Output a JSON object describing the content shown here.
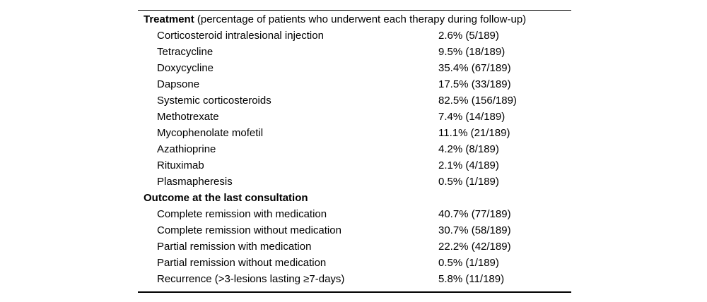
{
  "style": {
    "background": "#ffffff",
    "text_color": "#000000",
    "rule_color": "#000000"
  },
  "table": {
    "total_patients": "189",
    "sections": [
      {
        "header_bold": "Treatment",
        "header_rest": " (percentage of patients who underwent each therapy during follow-up)",
        "rows": [
          {
            "label": "Corticosteroid intralesional injection",
            "value": "2.6% (5/189)"
          },
          {
            "label": "Tetracycline",
            "value": "9.5% (18/189)"
          },
          {
            "label": "Doxycycline",
            "value": "35.4% (67/189)"
          },
          {
            "label": "Dapsone",
            "value": "17.5% (33/189)"
          },
          {
            "label": "Systemic corticosteroids",
            "value": "82.5% (156/189)"
          },
          {
            "label": "Methotrexate",
            "value": "7.4% (14/189)"
          },
          {
            "label": "Mycophenolate mofetil",
            "value": "11.1% (21/189)"
          },
          {
            "label": "Azathioprine",
            "value": "4.2% (8/189)"
          },
          {
            "label": "Rituximab",
            "value": "2.1% (4/189)"
          },
          {
            "label": "Plasmapheresis",
            "value": "0.5% (1/189)"
          }
        ]
      },
      {
        "header_bold": "Outcome at the last consultation",
        "header_rest": "",
        "rows": [
          {
            "label": "Complete remission with medication",
            "value": "40.7% (77/189)"
          },
          {
            "label": "Complete remission without medication",
            "value": "30.7% (58/189)"
          },
          {
            "label": "Partial remission with medication",
            "value": "22.2% (42/189)"
          },
          {
            "label": "Partial remission without medication",
            "value": "0.5% (1/189)"
          },
          {
            "label": "Recurrence (>3-lesions lasting ≥7-days)",
            "value": "5.8% (11/189)"
          }
        ]
      }
    ]
  }
}
